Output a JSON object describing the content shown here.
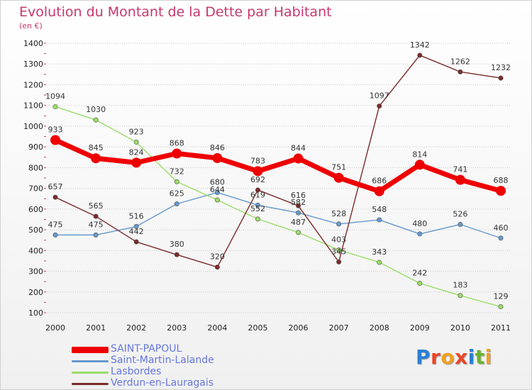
{
  "chart_data": {
    "type": "line",
    "title": "Evolution du Montant de la Dette par Habitant",
    "subtitle": "(en €)",
    "x": [
      "2000",
      "2001",
      "2002",
      "2003",
      "2004",
      "2005",
      "2006",
      "2007",
      "2008",
      "2009",
      "2010",
      "2011"
    ],
    "yticks": [
      "100",
      "200",
      "300",
      "400",
      "500",
      "600",
      "700",
      "800",
      "900",
      "1000",
      "1100",
      "1200",
      "1300",
      "1400"
    ],
    "ylim": [
      100,
      1400
    ],
    "series": [
      {
        "name": "SAINT-PAPOUL",
        "color": "#ee0000",
        "values": [
          933,
          845,
          824,
          868,
          846,
          783,
          844,
          751,
          686,
          814,
          741,
          688
        ]
      },
      {
        "name": "Saint-Martin-Lalande",
        "color": "#6699cc",
        "values": [
          475,
          475,
          516,
          625,
          680,
          619,
          582,
          528,
          548,
          480,
          526,
          460
        ]
      },
      {
        "name": "Lasbordes",
        "color": "#99dd66",
        "values": [
          1094,
          1030,
          923,
          732,
          644,
          552,
          487,
          403,
          343,
          242,
          183,
          129
        ]
      },
      {
        "name": "Verdun-en-Lauragais",
        "color": "#7a2a2a",
        "values": [
          657,
          565,
          442,
          380,
          320,
          692,
          616,
          345,
          1097,
          1342,
          1262,
          1232
        ]
      }
    ],
    "legend_placement": "bottom-left"
  },
  "branding": {
    "logo_letters": [
      "P",
      "r",
      "o",
      "x",
      "i",
      "t",
      "i"
    ],
    "logo_colors": [
      "#2a7fd4",
      "#e8462a",
      "#f0a020",
      "#e8462a",
      "#2a7fd4",
      "#6ab42d",
      "#f0a020"
    ]
  }
}
